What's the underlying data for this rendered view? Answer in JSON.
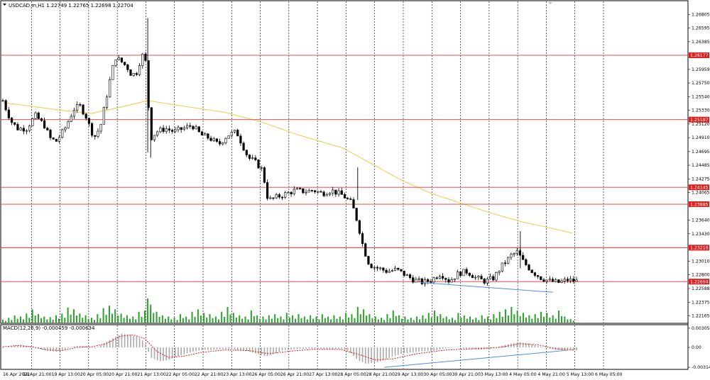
{
  "window": {
    "title": "USDCAD.m,H1  1.22749 1.22765 1.22698 1.22704"
  },
  "chart_data": {
    "type": "candlestick",
    "symbol": "USDCAD.m",
    "timeframe": "H1",
    "ohlc_header": {
      "open": 1.22749,
      "high": 1.22765,
      "low": 1.22698,
      "close": 1.22704
    },
    "price_axis": {
      "ticks": [
        "1.26805",
        "1.26595",
        "1.26385",
        "1.25959",
        "1.25750",
        "1.25540",
        "1.25330",
        "1.25120",
        "1.24910",
        "1.24695",
        "1.24485",
        "1.24275",
        "1.24065",
        "1.23640",
        "1.23430",
        "1.23010",
        "1.22800",
        "1.22588",
        "1.22375",
        "1.22165"
      ],
      "range": [
        1.2214,
        1.2694
      ]
    },
    "time_axis": {
      "ticks": [
        "16 Apr 2021",
        "16 Apr 21:00",
        "19 Apr 13:00",
        "20 Apr 05:00",
        "20 Apr 21:00",
        "21 Apr 13:00",
        "22 Apr 05:00",
        "22 Apr 21:00",
        "23 Apr 13:00",
        "26 Apr 05:00",
        "26 Apr 21:00",
        "27 Apr 13:00",
        "28 Apr 05:00",
        "28 Apr 21:00",
        "29 Apr 13:00",
        "30 Apr 05:00",
        "30 Apr 21:00",
        "3 May 13:00",
        "4 May 05:00",
        "4 May 21:00",
        "5 May 13:00",
        "6 May 05:00"
      ]
    },
    "horizontal_levels": [
      {
        "price": 1.26177,
        "label": "1.26177"
      },
      {
        "price": 1.25187,
        "label": "1.25187"
      },
      {
        "price": 1.24145,
        "label": "1.24145"
      },
      {
        "price": 1.23885,
        "label": "1.23885"
      },
      {
        "price": 1.23216,
        "label": "1.23216"
      },
      {
        "price": 1.22694,
        "label": "1.22694"
      }
    ],
    "price_path": [
      [
        0,
        1.2548
      ],
      [
        3,
        1.253
      ],
      [
        6,
        1.2515
      ],
      [
        10,
        1.2505
      ],
      [
        16,
        1.2505
      ],
      [
        22,
        1.2525
      ],
      [
        28,
        1.251
      ],
      [
        32,
        1.249
      ],
      [
        36,
        1.2485
      ],
      [
        42,
        1.2505
      ],
      [
        48,
        1.2535
      ],
      [
        52,
        1.254
      ],
      [
        56,
        1.2525
      ],
      [
        60,
        1.25
      ],
      [
        62,
        1.2492
      ],
      [
        66,
        1.2508
      ],
      [
        68,
        1.253
      ],
      [
        72,
        1.2575
      ],
      [
        76,
        1.2615
      ],
      [
        80,
        1.2608
      ],
      [
        84,
        1.26
      ],
      [
        86,
        1.259
      ],
      [
        90,
        1.2588
      ],
      [
        93,
        1.261
      ],
      [
        96,
        1.2625
      ],
      [
        98,
        1.2555
      ],
      [
        100,
        1.249
      ],
      [
        104,
        1.25
      ],
      [
        110,
        1.2505
      ],
      [
        116,
        1.25
      ],
      [
        122,
        1.2505
      ],
      [
        128,
        1.251
      ],
      [
        134,
        1.2495
      ],
      [
        140,
        1.249
      ],
      [
        146,
        1.248
      ],
      [
        152,
        1.2495
      ],
      [
        158,
        1.25
      ],
      [
        162,
        1.248
      ],
      [
        166,
        1.246
      ],
      [
        170,
        1.2455
      ],
      [
        176,
        1.244
      ],
      [
        178,
        1.2405
      ],
      [
        180,
        1.2395
      ],
      [
        186,
        1.24
      ],
      [
        192,
        1.2405
      ],
      [
        198,
        1.241
      ],
      [
        204,
        1.2408
      ],
      [
        210,
        1.241
      ],
      [
        216,
        1.2405
      ],
      [
        222,
        1.241
      ],
      [
        230,
        1.2402
      ],
      [
        236,
        1.239
      ],
      [
        240,
        1.236
      ],
      [
        244,
        1.232
      ],
      [
        248,
        1.2295
      ],
      [
        254,
        1.229
      ],
      [
        260,
        1.2285
      ],
      [
        266,
        1.2288
      ],
      [
        272,
        1.228
      ],
      [
        278,
        1.2272
      ],
      [
        284,
        1.2268
      ],
      [
        290,
        1.2272
      ],
      [
        296,
        1.2282
      ],
      [
        302,
        1.227
      ],
      [
        308,
        1.2282
      ],
      [
        314,
        1.2285
      ],
      [
        320,
        1.2275
      ],
      [
        326,
        1.227
      ],
      [
        332,
        1.2275
      ],
      [
        338,
        1.2295
      ],
      [
        344,
        1.231
      ],
      [
        348,
        1.2315
      ],
      [
        352,
        1.23
      ],
      [
        358,
        1.2285
      ],
      [
        364,
        1.2275
      ],
      [
        370,
        1.227
      ],
      [
        376,
        1.2268
      ],
      [
        382,
        1.2272
      ],
      [
        388,
        1.227
      ]
    ],
    "moving_average": [
      [
        0,
        1.2545
      ],
      [
        40,
        1.2533
      ],
      [
        60,
        1.2528
      ],
      [
        80,
        1.2538
      ],
      [
        98,
        1.2548
      ],
      [
        120,
        1.254
      ],
      [
        150,
        1.253
      ],
      [
        175,
        1.2515
      ],
      [
        200,
        1.2495
      ],
      [
        230,
        1.2475
      ],
      [
        250,
        1.245
      ],
      [
        270,
        1.2425
      ],
      [
        290,
        1.2405
      ],
      [
        310,
        1.239
      ],
      [
        330,
        1.2375
      ],
      [
        350,
        1.2362
      ],
      [
        370,
        1.2352
      ],
      [
        385,
        1.2344
      ]
    ],
    "trendlines": [
      {
        "name": "price-support",
        "points": [
          [
            283,
            1.2268
          ],
          [
            372,
            1.2253
          ]
        ]
      },
      {
        "name": "macd-support",
        "points": [
          [
            258,
            -0.00315
          ],
          [
            382,
            -0.00045
          ]
        ]
      }
    ],
    "volume": [
      [
        0,
        5
      ],
      [
        4,
        8
      ],
      [
        8,
        12
      ],
      [
        12,
        10
      ],
      [
        16,
        15
      ],
      [
        20,
        22
      ],
      [
        24,
        14
      ],
      [
        28,
        10
      ],
      [
        32,
        9
      ],
      [
        36,
        12
      ],
      [
        40,
        15
      ],
      [
        44,
        25
      ],
      [
        48,
        22
      ],
      [
        52,
        15
      ],
      [
        56,
        12
      ],
      [
        60,
        8
      ],
      [
        64,
        14
      ],
      [
        68,
        24
      ],
      [
        72,
        28
      ],
      [
        76,
        22
      ],
      [
        80,
        15
      ],
      [
        84,
        12
      ],
      [
        88,
        10
      ],
      [
        92,
        18
      ],
      [
        96,
        20
      ],
      [
        98,
        40
      ],
      [
        100,
        30
      ],
      [
        104,
        18
      ],
      [
        108,
        12
      ],
      [
        112,
        10
      ],
      [
        116,
        8
      ],
      [
        120,
        14
      ],
      [
        124,
        10
      ],
      [
        128,
        18
      ],
      [
        132,
        22
      ],
      [
        136,
        16
      ],
      [
        140,
        14
      ],
      [
        144,
        10
      ],
      [
        148,
        18
      ],
      [
        152,
        26
      ],
      [
        156,
        16
      ],
      [
        160,
        12
      ],
      [
        164,
        10
      ],
      [
        168,
        20
      ],
      [
        172,
        12
      ],
      [
        176,
        10
      ],
      [
        180,
        12
      ],
      [
        184,
        14
      ],
      [
        188,
        10
      ],
      [
        192,
        16
      ],
      [
        196,
        12
      ],
      [
        200,
        14
      ],
      [
        204,
        10
      ],
      [
        208,
        12
      ],
      [
        212,
        10
      ],
      [
        216,
        14
      ],
      [
        220,
        10
      ],
      [
        224,
        12
      ],
      [
        228,
        10
      ],
      [
        232,
        16
      ],
      [
        236,
        14
      ],
      [
        240,
        26
      ],
      [
        244,
        22
      ],
      [
        248,
        14
      ],
      [
        252,
        10
      ],
      [
        256,
        8
      ],
      [
        260,
        14
      ],
      [
        264,
        20
      ],
      [
        268,
        12
      ],
      [
        272,
        10
      ],
      [
        276,
        8
      ],
      [
        280,
        10
      ],
      [
        284,
        12
      ],
      [
        288,
        16
      ],
      [
        292,
        20
      ],
      [
        296,
        14
      ],
      [
        300,
        10
      ],
      [
        304,
        8
      ],
      [
        308,
        16
      ],
      [
        312,
        12
      ],
      [
        316,
        10
      ],
      [
        320,
        8
      ],
      [
        324,
        12
      ],
      [
        328,
        10
      ],
      [
        332,
        14
      ],
      [
        336,
        18
      ],
      [
        340,
        22
      ],
      [
        344,
        26
      ],
      [
        348,
        20
      ],
      [
        352,
        16
      ],
      [
        356,
        12
      ],
      [
        360,
        14
      ],
      [
        364,
        18
      ],
      [
        368,
        16
      ],
      [
        372,
        12
      ],
      [
        376,
        20
      ],
      [
        380,
        10
      ],
      [
        384,
        6
      ]
    ],
    "macd": {
      "label": "MACD(12,26,9) -0.000459 -0.000634",
      "ticks": [
        "0.003051",
        "0.00",
        "-0.003143"
      ],
      "range": [
        -0.00325,
        0.00315
      ],
      "histogram": [
        [
          0,
          -0.0001
        ],
        [
          6,
          0.0002
        ],
        [
          12,
          0.0004
        ],
        [
          18,
          0.0002
        ],
        [
          24,
          -0.0002
        ],
        [
          30,
          -0.0005
        ],
        [
          36,
          -0.0007
        ],
        [
          42,
          -0.0003
        ],
        [
          48,
          0.0002
        ],
        [
          56,
          0.0003
        ],
        [
          62,
          -0.0002
        ],
        [
          68,
          0.0006
        ],
        [
          74,
          0.0014
        ],
        [
          80,
          0.0022
        ],
        [
          86,
          0.002
        ],
        [
          92,
          0.0016
        ],
        [
          96,
          0.0008
        ],
        [
          100,
          -0.0016
        ],
        [
          106,
          -0.0022
        ],
        [
          112,
          -0.002
        ],
        [
          118,
          -0.0014
        ],
        [
          124,
          -0.001
        ],
        [
          130,
          -0.0006
        ],
        [
          136,
          -0.0004
        ],
        [
          142,
          -0.0004
        ],
        [
          150,
          -0.0002
        ],
        [
          158,
          -0.0004
        ],
        [
          166,
          -0.0006
        ],
        [
          172,
          -0.001
        ],
        [
          178,
          -0.0014
        ],
        [
          184,
          -0.001
        ],
        [
          190,
          -0.0004
        ],
        [
          196,
          -0.0003
        ],
        [
          204,
          -0.0002
        ],
        [
          212,
          -0.0002
        ],
        [
          220,
          -0.0003
        ],
        [
          228,
          -0.0002
        ],
        [
          234,
          -0.0006
        ],
        [
          240,
          -0.002
        ],
        [
          246,
          -0.0026
        ],
        [
          252,
          -0.0024
        ],
        [
          258,
          -0.002
        ],
        [
          264,
          -0.0014
        ],
        [
          270,
          -0.001
        ],
        [
          276,
          -0.0008
        ],
        [
          282,
          -0.0006
        ],
        [
          290,
          -0.0006
        ],
        [
          298,
          -0.0002
        ],
        [
          306,
          0.0
        ],
        [
          314,
          -0.0002
        ],
        [
          322,
          -0.0004
        ],
        [
          330,
          -0.0002
        ],
        [
          338,
          0.0003
        ],
        [
          344,
          0.0006
        ],
        [
          350,
          0.0008
        ],
        [
          356,
          0.0006
        ],
        [
          362,
          0.0002
        ],
        [
          368,
          -0.0001
        ],
        [
          374,
          -0.0004
        ],
        [
          380,
          -0.0005
        ],
        [
          386,
          -0.0005
        ]
      ],
      "signal": [
        [
          0,
          0.0001
        ],
        [
          10,
          0.0003
        ],
        [
          20,
          0.0001
        ],
        [
          30,
          -0.0004
        ],
        [
          40,
          -0.0005
        ],
        [
          50,
          0.0
        ],
        [
          60,
          0.0001
        ],
        [
          70,
          0.0006
        ],
        [
          80,
          0.0018
        ],
        [
          88,
          0.002
        ],
        [
          96,
          0.0014
        ],
        [
          104,
          -0.0006
        ],
        [
          112,
          -0.0016
        ],
        [
          122,
          -0.0014
        ],
        [
          134,
          -0.0008
        ],
        [
          150,
          -0.0004
        ],
        [
          166,
          -0.0005
        ],
        [
          180,
          -0.001
        ],
        [
          194,
          -0.0006
        ],
        [
          210,
          -0.0003
        ],
        [
          228,
          -0.0003
        ],
        [
          242,
          -0.0012
        ],
        [
          252,
          -0.002
        ],
        [
          264,
          -0.0018
        ],
        [
          280,
          -0.001
        ],
        [
          300,
          -0.0004
        ],
        [
          320,
          -0.0002
        ],
        [
          336,
          0.0
        ],
        [
          350,
          0.0006
        ],
        [
          362,
          0.0004
        ],
        [
          374,
          -0.0002
        ],
        [
          386,
          -0.0004
        ]
      ]
    },
    "colors": {
      "bull_candle": "#000000",
      "bear_candle": "#000000",
      "level_line": "#e8342f",
      "level_label_bg": "#e01e1e",
      "moving_average": "#f2c94c",
      "trendline": "#4a90e2",
      "volume": "#2ca02c",
      "macd_histogram": "#a9a9a9",
      "macd_signal": "#e02020",
      "grid": "#000000"
    }
  }
}
